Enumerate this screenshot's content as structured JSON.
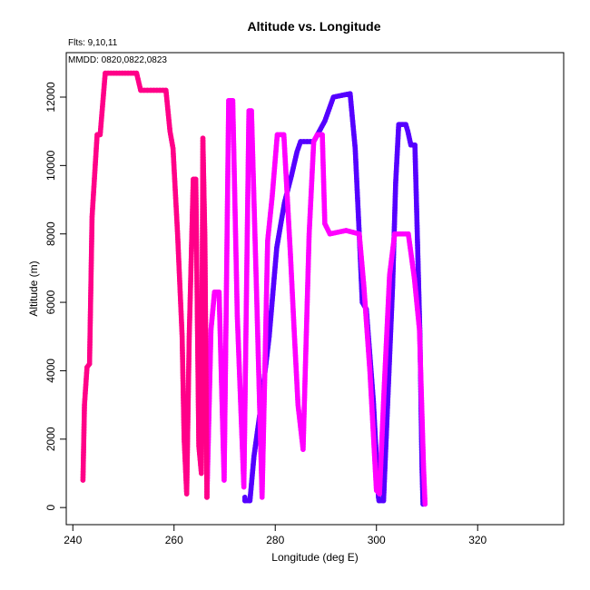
{
  "chart_data": {
    "type": "line",
    "title": "Altitude vs. Longitude",
    "xlabel": "Longitude (deg E)",
    "ylabel": "Altitude (m)",
    "annotations": {
      "flights": "Flts: 9,10,11",
      "dates": "MMDD: 0820,0822,0823"
    },
    "xlim": [
      238.7,
      337.0
    ],
    "ylim": [
      -500,
      13300
    ],
    "x_ticks": [
      "240",
      "260",
      "280",
      "300",
      "320"
    ],
    "y_ticks": [
      "0",
      "2000",
      "4000",
      "6000",
      "8000",
      "10000",
      "12000"
    ],
    "x_tick_values": [
      240,
      260,
      280,
      300,
      320
    ],
    "y_tick_values": [
      0,
      2000,
      4000,
      6000,
      8000,
      10000,
      12000
    ],
    "grid": false,
    "series": [
      {
        "color": "#5500ff",
        "points": [
          [
            274.0,
            300
          ],
          [
            274.0,
            200
          ],
          [
            275.0,
            200
          ],
          [
            275.8,
            1500
          ],
          [
            277.2,
            3000
          ],
          [
            278.8,
            5000
          ],
          [
            280.3,
            7600
          ],
          [
            281.8,
            8900
          ],
          [
            283.2,
            9700
          ],
          [
            284.3,
            10400
          ],
          [
            285.0,
            10700
          ],
          [
            287.6,
            10700
          ],
          [
            289.8,
            11300
          ],
          [
            291.5,
            12000
          ],
          [
            294.8,
            12100
          ],
          [
            295.8,
            10500
          ],
          [
            296.6,
            8000
          ],
          [
            297.2,
            6000
          ],
          [
            298.0,
            5800
          ],
          [
            299.4,
            3100
          ],
          [
            300.4,
            300
          ],
          [
            300.5,
            200
          ],
          [
            301.4,
            200
          ],
          [
            302.2,
            3000
          ],
          [
            303.2,
            6500
          ],
          [
            303.8,
            9500
          ],
          [
            304.4,
            11200
          ],
          [
            305.8,
            11200
          ],
          [
            306.2,
            11000
          ],
          [
            306.8,
            10600
          ],
          [
            307.6,
            10600
          ],
          [
            308.0,
            8400
          ],
          [
            308.6,
            5000
          ],
          [
            309.0,
            1200
          ],
          [
            309.2,
            100
          ]
        ]
      },
      {
        "color": "#ff00ff",
        "points": [
          [
            266.5,
            300
          ],
          [
            267.3,
            5200
          ],
          [
            268.0,
            6300
          ],
          [
            268.9,
            6300
          ],
          [
            269.9,
            800
          ],
          [
            270.8,
            11900
          ],
          [
            271.6,
            11900
          ],
          [
            272.5,
            5600
          ],
          [
            273.8,
            600
          ],
          [
            274.8,
            11600
          ],
          [
            275.3,
            11600
          ],
          [
            276.4,
            5800
          ],
          [
            277.4,
            300
          ],
          [
            278.5,
            7800
          ],
          [
            279.4,
            9100
          ],
          [
            280.4,
            10900
          ],
          [
            281.7,
            10900
          ],
          [
            283.0,
            7400
          ],
          [
            283.8,
            5000
          ],
          [
            284.5,
            3000
          ],
          [
            285.5,
            1700
          ],
          [
            286.7,
            8000
          ],
          [
            287.6,
            10700
          ],
          [
            288.3,
            10900
          ],
          [
            289.3,
            10900
          ],
          [
            289.8,
            8300
          ],
          [
            290.8,
            8000
          ],
          [
            294.0,
            8100
          ],
          [
            296.6,
            8000
          ],
          [
            297.5,
            6500
          ],
          [
            298.7,
            4000
          ],
          [
            300.0,
            500
          ],
          [
            300.6,
            400
          ],
          [
            301.5,
            3400
          ],
          [
            302.6,
            6800
          ],
          [
            303.6,
            8000
          ],
          [
            306.3,
            8000
          ],
          [
            307.5,
            6700
          ],
          [
            308.5,
            5200
          ],
          [
            309.3,
            1200
          ],
          [
            309.6,
            100
          ]
        ]
      },
      {
        "color": "#ff0088",
        "points": [
          [
            242.0,
            800
          ],
          [
            242.3,
            3000
          ],
          [
            242.8,
            4100
          ],
          [
            243.3,
            4200
          ],
          [
            243.8,
            8500
          ],
          [
            244.8,
            10900
          ],
          [
            245.4,
            10900
          ],
          [
            246.4,
            12700
          ],
          [
            252.6,
            12700
          ],
          [
            253.4,
            12200
          ],
          [
            255.4,
            12200
          ],
          [
            258.4,
            12200
          ],
          [
            259.2,
            11000
          ],
          [
            259.8,
            10500
          ],
          [
            260.7,
            8000
          ],
          [
            261.6,
            5000
          ],
          [
            262.0,
            2000
          ],
          [
            262.5,
            400
          ],
          [
            263.0,
            5000
          ],
          [
            263.8,
            9600
          ],
          [
            264.3,
            9600
          ],
          [
            264.9,
            1800
          ],
          [
            265.4,
            1000
          ],
          [
            265.7,
            10800
          ],
          [
            266.1,
            7800
          ],
          [
            266.5,
            300
          ]
        ]
      }
    ]
  }
}
